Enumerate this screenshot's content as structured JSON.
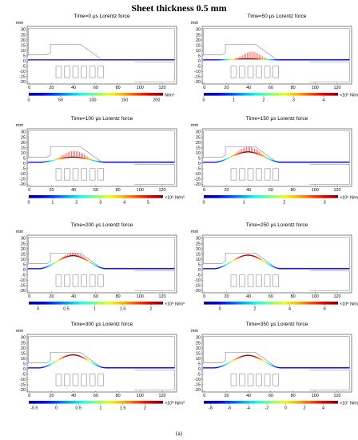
{
  "figure": {
    "title": "Sheet thickness 0.5 mm",
    "caption": "(a)",
    "axis_unit": "mm",
    "x_ticks": [
      "0",
      "20",
      "40",
      "60",
      "80",
      "100",
      "120"
    ],
    "y_ticks": [
      "30",
      "25",
      "20",
      "15",
      "10",
      "5",
      "0",
      "-5",
      "-10",
      "-15",
      "-20"
    ]
  },
  "colors": {
    "frame": "#7f7f7f",
    "sheet": "#1a1aa0",
    "arrow": "#e8160c"
  },
  "panels": [
    {
      "title": "Time=0 μs  Lorentz force",
      "bulge": 0,
      "arrow_amp": 0,
      "arrow_from": 0,
      "arrow_to": 0,
      "colorbar": {
        "ticks": [
          "0",
          "50",
          "100",
          "150",
          "200"
        ],
        "tick_pos": [
          0,
          0.238,
          0.476,
          0.714,
          0.952
        ],
        "exponent": "",
        "unit": "N/m³"
      }
    },
    {
      "title": "Time=50 μs  Lorentz force",
      "bulge": 1,
      "arrow_amp": 7,
      "arrow_from": 26,
      "arrow_to": 60,
      "colorbar": {
        "ticks": [
          "0",
          "1",
          "2",
          "3",
          "4"
        ],
        "tick_pos": [
          0,
          0.223,
          0.446,
          0.669,
          0.892
        ],
        "exponent": "×10⁹",
        "unit": "N/m³"
      }
    },
    {
      "title": "Time=100 μs  Lorentz force",
      "bulge": 5,
      "arrow_amp": 6,
      "arrow_from": 20,
      "arrow_to": 62,
      "colorbar": {
        "ticks": [
          "0",
          "1",
          "2",
          "3",
          "4",
          "5"
        ],
        "tick_pos": [
          0,
          0.178,
          0.356,
          0.534,
          0.712,
          0.89
        ],
        "exponent": "×10⁹",
        "unit": "N/m³"
      }
    },
    {
      "title": "Time=150 μs  Lorentz force",
      "bulge": 10,
      "arrow_amp": 5,
      "arrow_from": 20,
      "arrow_to": 62,
      "colorbar": {
        "ticks": [
          "0",
          "1",
          "2",
          "3"
        ],
        "tick_pos": [
          0,
          0.3,
          0.6,
          0.9
        ],
        "exponent": "×10⁹",
        "unit": "N/m³"
      }
    },
    {
      "title": "Time=200 μs  Lorentz force",
      "bulge": 12.5,
      "arrow_amp": 3,
      "arrow_from": 22,
      "arrow_to": 62,
      "colorbar": {
        "ticks": [
          "0",
          "0.5",
          "1",
          "1.5",
          "2"
        ],
        "tick_pos": [
          0.07,
          0.28,
          0.49,
          0.7,
          0.91
        ],
        "exponent": "×10⁹",
        "unit": "N/m³"
      }
    },
    {
      "title": "Time=250 μs  Lorentz force",
      "bulge": 13,
      "arrow_amp": 0,
      "arrow_from": 0,
      "arrow_to": 0,
      "colorbar": {
        "ticks": [
          "0",
          "2",
          "4",
          "6"
        ],
        "tick_pos": [
          0.12,
          0.38,
          0.64,
          0.9
        ],
        "exponent": "×10⁸",
        "unit": "N/m³"
      }
    },
    {
      "title": "Time=300 μs  Lorentz force",
      "bulge": 12.5,
      "arrow_amp": 0,
      "arrow_from": 0,
      "arrow_to": 0,
      "colorbar": {
        "ticks": [
          "-0.5",
          "0",
          "0.5",
          "1",
          "1.5",
          "2"
        ],
        "tick_pos": [
          0.04,
          0.205,
          0.37,
          0.535,
          0.7,
          0.865
        ],
        "exponent": "×10⁸",
        "unit": "N/m³"
      }
    },
    {
      "title": "Time=350 μs  Lorentz force",
      "bulge": 12,
      "arrow_amp": 0,
      "arrow_from": 0,
      "arrow_to": 0,
      "colorbar": {
        "ticks": [
          "-8",
          "-6",
          "-4",
          "-2",
          "0",
          "2",
          "4"
        ],
        "tick_pos": [
          0.05,
          0.19,
          0.33,
          0.47,
          0.61,
          0.75,
          0.89
        ],
        "exponent": "×10⁷",
        "unit": "N/m³"
      }
    }
  ]
}
